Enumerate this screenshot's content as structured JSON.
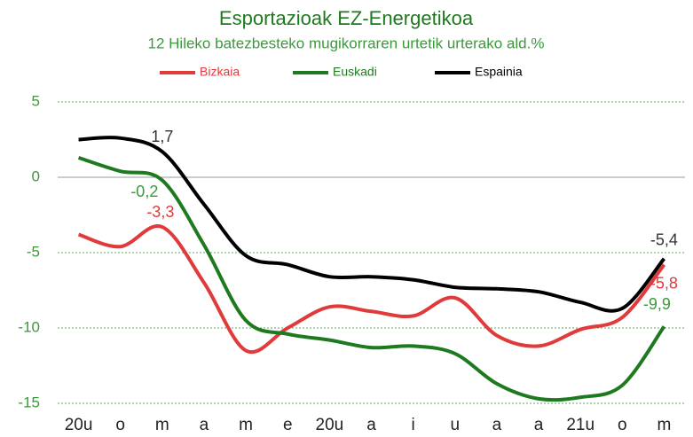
{
  "chart_data": {
    "type": "line",
    "title": "Esportazioak EZ-Energetikoa",
    "subtitle": "12 Hileko  batezbesteko mugikorraren  urtetik urterako ald.%",
    "categories": [
      "20u",
      "o",
      "m",
      "a",
      "m",
      "e",
      "20u",
      "a",
      "i",
      "u",
      "a",
      "a",
      "21u",
      "o",
      "m"
    ],
    "series": [
      {
        "name": "Bizkaia",
        "color": "#e03a3a",
        "values": [
          -3.8,
          -4.6,
          -3.3,
          -7.0,
          -11.5,
          -10.0,
          -8.6,
          -8.9,
          -9.2,
          -8.0,
          -10.5,
          -11.2,
          -10.1,
          -9.3,
          -5.8
        ],
        "value_labels": [
          null,
          null,
          "-3,3",
          null,
          null,
          null,
          null,
          null,
          null,
          null,
          null,
          null,
          null,
          null,
          "-5,8"
        ]
      },
      {
        "name": "Euskadi",
        "color": "#1e7a1e",
        "values": [
          1.3,
          0.4,
          -0.2,
          -4.5,
          -9.5,
          -10.4,
          -10.8,
          -11.3,
          -11.2,
          -11.7,
          -13.7,
          -14.7,
          -14.6,
          -13.8,
          -9.9
        ],
        "value_labels": [
          null,
          null,
          "-0,2",
          null,
          null,
          null,
          null,
          null,
          null,
          null,
          null,
          null,
          null,
          null,
          "-9,9"
        ]
      },
      {
        "name": "Espainia",
        "color": "#000000",
        "values": [
          2.5,
          2.6,
          1.7,
          -1.8,
          -5.2,
          -5.8,
          -6.6,
          -6.6,
          -6.8,
          -7.3,
          -7.4,
          -7.6,
          -8.3,
          -8.7,
          -5.4
        ],
        "value_labels": [
          null,
          null,
          "1,7",
          null,
          null,
          null,
          null,
          null,
          null,
          null,
          null,
          null,
          null,
          null,
          "-5,4"
        ]
      }
    ],
    "ylim": [
      -15,
      5
    ],
    "yticks": [
      5,
      0,
      -5,
      -10,
      -15
    ],
    "grid": true
  }
}
